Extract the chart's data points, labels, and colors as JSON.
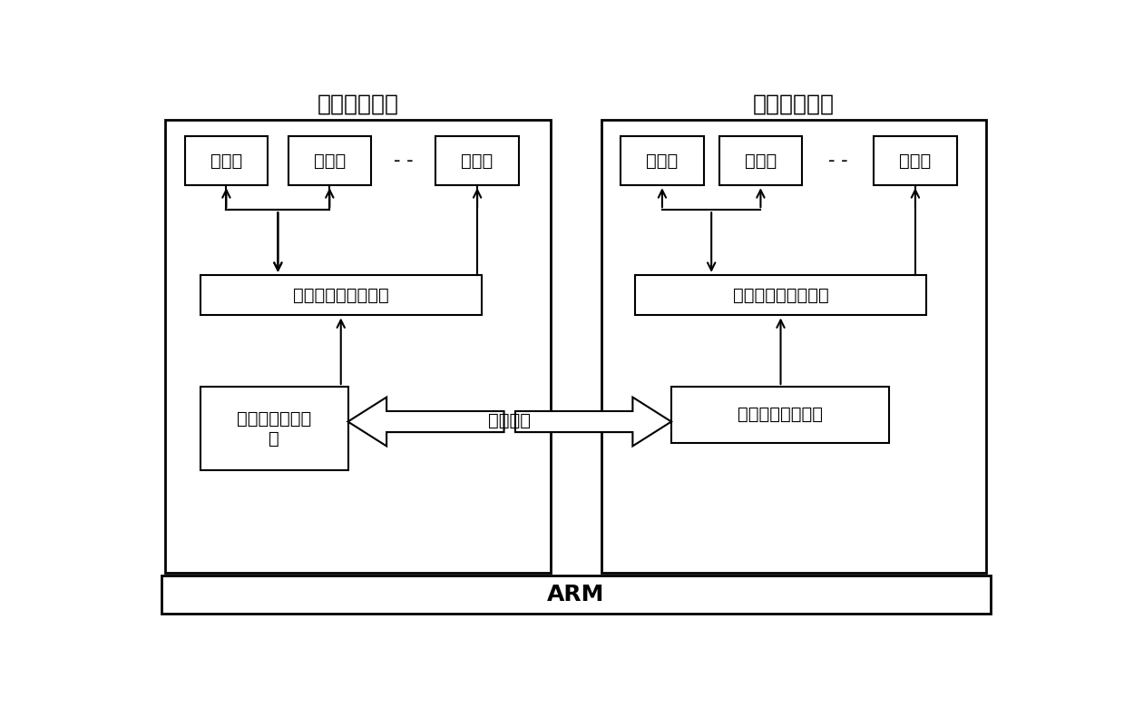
{
  "title_left": "普通操作系统",
  "title_right": "安全操作系统",
  "arm_label": "ARM",
  "shared_memory_label": "共享内存",
  "client_boxes": [
    "客户端",
    "客户端",
    "客户端"
  ],
  "server_boxes": [
    "服务端",
    "服务端",
    "服务端"
  ],
  "client_api_label": "客户端系统调用接口",
  "server_api_label": "服务端系统调用接口",
  "client_driver_label": "底层普通通信驱\n动",
  "server_driver_label": "底层安全通信驱动",
  "dash_separator": "- -",
  "bg_color": "#ffffff",
  "lw_outer": 2.0,
  "lw_inner": 1.5,
  "font_size_title": 18,
  "font_size_label": 14,
  "font_size_arm": 18,
  "font_size_dash": 15
}
